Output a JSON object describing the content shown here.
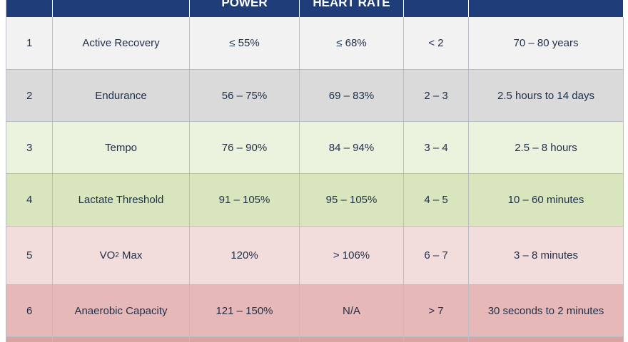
{
  "header": {
    "col0": "",
    "col1": "",
    "col2": "POWER",
    "col3": "HEART RATE",
    "col4": "",
    "col5": ""
  },
  "rows": [
    {
      "zone": "1",
      "name": "Active Recovery",
      "power": "≤ 55%",
      "hr": "≤ 68%",
      "rpe": "< 2",
      "duration": "70 – 80 years",
      "color": "#f2f2f2"
    },
    {
      "zone": "2",
      "name": "Endurance",
      "power": "56 – 75%",
      "hr": "69 – 83%",
      "rpe": "2 – 3",
      "duration": "2.5 hours to 14 days",
      "color": "#dadada"
    },
    {
      "zone": "3",
      "name": "Tempo",
      "power": "76 – 90%",
      "hr": "84 – 94%",
      "rpe": "3 – 4",
      "duration": "2.5 – 8 hours",
      "color": "#ebf2dd"
    },
    {
      "zone": "4",
      "name": "Lactate Threshold",
      "power": "91 – 105%",
      "hr": "95 – 105%",
      "rpe": "4 – 5",
      "duration": "10 – 60 minutes",
      "color": "#d8e5bd"
    },
    {
      "zone": "5",
      "name_main": "VO",
      "name_sub": "2",
      "name_tail": " Max",
      "power": "120%",
      "hr": "> 106%",
      "rpe": "6 – 7",
      "duration": "3 – 8 minutes",
      "color": "#f3dcdc"
    },
    {
      "zone": "6",
      "name": "Anaerobic Capacity",
      "power": "121 – 150%",
      "hr": "N/A",
      "rpe": "> 7",
      "duration": "30 seconds to 2 minutes",
      "color": "#e6b8b8"
    }
  ],
  "colors": {
    "header_bg": "#1f3d78",
    "row7_bg": "#dca3a3"
  }
}
